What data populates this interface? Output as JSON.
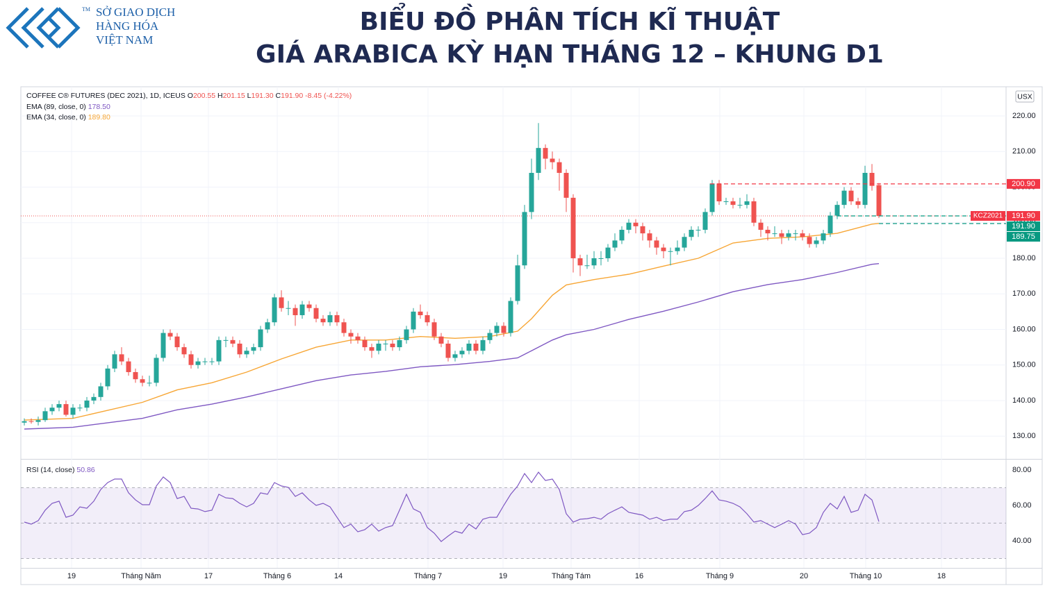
{
  "header": {
    "title_line1": "BIỂU ĐỒ PHÂN TÍCH KĨ THUẬT",
    "title_line2": "GIÁ ARABICA KỲ HẠN THÁNG 12 – KHUNG D1",
    "logo_lines": [
      "SỞ GIAO DỊCH",
      "HÀNG HÓA",
      "VIỆT NAM"
    ],
    "logo_mark": "TM"
  },
  "chart_data": {
    "type": "candlestick",
    "symbol": "COFFEE C® FUTURES (DEC 2021), 1D, ICEUS",
    "ohlc_legend": [
      {
        "key": "O",
        "text": "200.55"
      },
      {
        "key": "H",
        "text": "201.15"
      },
      {
        "key": "L",
        "text": "191.30"
      },
      {
        "key": "C",
        "text": "191.90"
      }
    ],
    "change": "-8.45 (-4.22%)",
    "currency": "USX",
    "up_color": "#26a69a",
    "down_color": "#ef5350",
    "ylim": [
      123.6,
      228.2
    ],
    "yticks": [
      {
        "value": 130,
        "label": "130.00"
      },
      {
        "value": 140,
        "label": "140.00"
      },
      {
        "value": 150,
        "label": "150.00"
      },
      {
        "value": 160,
        "label": "160.00"
      },
      {
        "value": 170,
        "label": "170.00"
      },
      {
        "value": 180,
        "label": "180.00"
      },
      {
        "value": 190,
        "label": "190.00"
      },
      {
        "value": 200,
        "label": "200.00"
      },
      {
        "value": 210,
        "label": "210.00"
      },
      {
        "value": 220,
        "label": "220.00"
      }
    ],
    "xlim": [
      -0.5,
      141.3
    ],
    "xticks": [
      {
        "value": 6.8,
        "label": "19"
      },
      {
        "value": 16.8,
        "label": "Tháng Năm"
      },
      {
        "value": 26.5,
        "label": "17"
      },
      {
        "value": 36.4,
        "label": "Tháng 6"
      },
      {
        "value": 45.2,
        "label": "14"
      },
      {
        "value": 58.1,
        "label": "Tháng 7"
      },
      {
        "value": 68.9,
        "label": "19"
      },
      {
        "value": 78.7,
        "label": "Tháng Tám"
      },
      {
        "value": 88.5,
        "label": "16"
      },
      {
        "value": 100.1,
        "label": "Tháng 9"
      },
      {
        "value": 112.2,
        "label": "20"
      },
      {
        "value": 121.1,
        "label": "Tháng 10"
      },
      {
        "value": 132,
        "label": "18"
      }
    ],
    "grid": true,
    "candles": [
      [
        133.8,
        135,
        133,
        134.2
      ],
      [
        134.2,
        135,
        133.5,
        134
      ],
      [
        134,
        135.5,
        133,
        134.5
      ],
      [
        134.5,
        138,
        134,
        137
      ],
      [
        137,
        139,
        136,
        138
      ],
      [
        138,
        140,
        137,
        139
      ],
      [
        139,
        140,
        135.5,
        136
      ],
      [
        136,
        139,
        135,
        138
      ],
      [
        138,
        139,
        137,
        138
      ],
      [
        138,
        141,
        137,
        140
      ],
      [
        140,
        142,
        139,
        141
      ],
      [
        141,
        145,
        140,
        144
      ],
      [
        144,
        150,
        143,
        149
      ],
      [
        149,
        154,
        148,
        153
      ],
      [
        153,
        155,
        150,
        151
      ],
      [
        151,
        152,
        147,
        148
      ],
      [
        148,
        149,
        145,
        146
      ],
      [
        146,
        147,
        144,
        145
      ],
      [
        145,
        147,
        144,
        145
      ],
      [
        145,
        153,
        144,
        152
      ],
      [
        152,
        160,
        151,
        159
      ],
      [
        159,
        160,
        157,
        158
      ],
      [
        158,
        159,
        154,
        155
      ],
      [
        155,
        156,
        152,
        153
      ],
      [
        153,
        154,
        149,
        150
      ],
      [
        150,
        152,
        149,
        151
      ],
      [
        151,
        152,
        150,
        151
      ],
      [
        151,
        152,
        150,
        151
      ],
      [
        151,
        158,
        150,
        157
      ],
      [
        157,
        158,
        155,
        157
      ],
      [
        157,
        158,
        155,
        156
      ],
      [
        156,
        157,
        152,
        153
      ],
      [
        153,
        155,
        152,
        154
      ],
      [
        154,
        156,
        153,
        155
      ],
      [
        155,
        161,
        154,
        160
      ],
      [
        160,
        163,
        159,
        162
      ],
      [
        162,
        170,
        161,
        169
      ],
      [
        169,
        171,
        165,
        166
      ],
      [
        166,
        168,
        164,
        166
      ],
      [
        166,
        167,
        161,
        164
      ],
      [
        164,
        168,
        163,
        167
      ],
      [
        167,
        168,
        165,
        166
      ],
      [
        166,
        167,
        162,
        163
      ],
      [
        163,
        164,
        161,
        162
      ],
      [
        162,
        165,
        161,
        164
      ],
      [
        164,
        165,
        161,
        162
      ],
      [
        162,
        163,
        158,
        159
      ],
      [
        159,
        160,
        156,
        158
      ],
      [
        158,
        159,
        156,
        157
      ],
      [
        157,
        158,
        154,
        155
      ],
      [
        155,
        156,
        152,
        154
      ],
      [
        154,
        157,
        153,
        156
      ],
      [
        156,
        157,
        154,
        156
      ],
      [
        156,
        157,
        154,
        155
      ],
      [
        155,
        158,
        154,
        157
      ],
      [
        157,
        161,
        156,
        160
      ],
      [
        160,
        166,
        159,
        165
      ],
      [
        165,
        167,
        163,
        164
      ],
      [
        164,
        165,
        161,
        162
      ],
      [
        162,
        163,
        157,
        158
      ],
      [
        158,
        159,
        155,
        156
      ],
      [
        156,
        157,
        151,
        152
      ],
      [
        152,
        154,
        151,
        153
      ],
      [
        153,
        155,
        152,
        154
      ],
      [
        154,
        157,
        153,
        156
      ],
      [
        156,
        157,
        153,
        154
      ],
      [
        154,
        158,
        153,
        157
      ],
      [
        157,
        160,
        156,
        159
      ],
      [
        159,
        162,
        158,
        161
      ],
      [
        161,
        162,
        158,
        159
      ],
      [
        159,
        169,
        158,
        168
      ],
      [
        168,
        181,
        167,
        178
      ],
      [
        178,
        195,
        177,
        193
      ],
      [
        193,
        208,
        191,
        204
      ],
      [
        204,
        218,
        202,
        211
      ],
      [
        211,
        212,
        205,
        208
      ],
      [
        208,
        210,
        205,
        207
      ],
      [
        207,
        208,
        199,
        204
      ],
      [
        204,
        205,
        193,
        197
      ],
      [
        197,
        198,
        176,
        180
      ],
      [
        180,
        181,
        175,
        178
      ],
      [
        178,
        181,
        177,
        178
      ],
      [
        178,
        182,
        177,
        180
      ],
      [
        180,
        182,
        178,
        180
      ],
      [
        180,
        184,
        179,
        183
      ],
      [
        183,
        187,
        182,
        185
      ],
      [
        185,
        189,
        184,
        188
      ],
      [
        188,
        191,
        187,
        190
      ],
      [
        190,
        191,
        187,
        189
      ],
      [
        189,
        190,
        185,
        187
      ],
      [
        187,
        188,
        183,
        185
      ],
      [
        185,
        186,
        181,
        183
      ],
      [
        183,
        184,
        180,
        182
      ],
      [
        182,
        183,
        178,
        182
      ],
      [
        182,
        185,
        181,
        183
      ],
      [
        183,
        187,
        182,
        186
      ],
      [
        186,
        189,
        185,
        188
      ],
      [
        188,
        189,
        186,
        188
      ],
      [
        188,
        194,
        187,
        193
      ],
      [
        193,
        202,
        192,
        201
      ],
      [
        201,
        202,
        195,
        196
      ],
      [
        196,
        197,
        195,
        196
      ],
      [
        196,
        197,
        194,
        195
      ],
      [
        195,
        197,
        194,
        195
      ],
      [
        195,
        198,
        194,
        196
      ],
      [
        196,
        197,
        189,
        190
      ],
      [
        190,
        191,
        186,
        188
      ],
      [
        188,
        189,
        185,
        187
      ],
      [
        187,
        189,
        186,
        187
      ],
      [
        187,
        188,
        184,
        186
      ],
      [
        186,
        188,
        185,
        187
      ],
      [
        187,
        188,
        185,
        187
      ],
      [
        187,
        188,
        185,
        186
      ],
      [
        186,
        187,
        183,
        184
      ],
      [
        184,
        186,
        183,
        185
      ],
      [
        185,
        188,
        184,
        187
      ],
      [
        187,
        193,
        186,
        192
      ],
      [
        192,
        196,
        191,
        195
      ],
      [
        195,
        200,
        194,
        199
      ],
      [
        199,
        200,
        195,
        196
      ],
      [
        196,
        197,
        194,
        195
      ],
      [
        195,
        206,
        194,
        204
      ],
      [
        204,
        206.5,
        199,
        200.35
      ],
      [
        200.55,
        201.15,
        191.3,
        191.9
      ]
    ],
    "series": [
      {
        "name": "EMA (89, close, 0)",
        "last": "178.50",
        "color": "#7e57c2",
        "x": [
          0,
          7,
          17,
          22,
          27,
          32,
          37,
          42,
          47,
          52,
          57,
          62,
          67,
          71,
          73,
          76,
          78,
          82,
          87,
          92,
          97,
          102,
          107,
          112,
          117,
          122,
          123
        ],
        "values": [
          132,
          132.5,
          135,
          137.4,
          139,
          141,
          143.3,
          145.6,
          147.2,
          148.2,
          149.5,
          150.1,
          151,
          152,
          154,
          157,
          158.5,
          160,
          162.8,
          165.1,
          167.7,
          170.6,
          172.6,
          174,
          176,
          178.3,
          178.5
        ]
      },
      {
        "name": "EMA (34, close, 0)",
        "last": "189.80",
        "color": "#f7a635",
        "x": [
          0,
          7,
          17,
          22,
          27,
          32,
          37,
          42,
          47,
          52,
          57,
          62,
          67,
          71,
          73,
          76,
          78,
          82,
          87,
          92,
          97,
          102,
          107,
          112,
          117,
          122,
          123
        ],
        "values": [
          134.5,
          135,
          139.5,
          143,
          145,
          148,
          151.7,
          155,
          157,
          157,
          158,
          157.5,
          158,
          159.5,
          163,
          169.6,
          172.5,
          174,
          175.5,
          177.8,
          180,
          184.3,
          185.6,
          186,
          187,
          189.6,
          189.8
        ]
      }
    ],
    "last_price": 191.9,
    "levels": [
      {
        "value": 200.9,
        "from": 98.7,
        "color": "#f23645"
      },
      {
        "value": 191.9,
        "from": 117,
        "color": "#089981"
      },
      {
        "value": 189.75,
        "from": 123,
        "color": "#089981"
      }
    ],
    "price_tags": [
      {
        "value": 200.9,
        "label": "200.90",
        "color": "#f23645"
      },
      {
        "value": 191.9,
        "label": "191.90",
        "name": "KCZ2021",
        "color": "#f23645"
      },
      {
        "value": 191.9,
        "label": "191.90",
        "color": "#089981"
      },
      {
        "value": 189.75,
        "label": "189.75",
        "color": "#089981"
      }
    ],
    "rsi": {
      "name": "RSI (14, close)",
      "last": "50.86",
      "color": "#7e57c2",
      "ylim": [
        24.7,
        85.9
      ],
      "yticks": [
        {
          "value": 40,
          "label": "40.00"
        },
        {
          "value": 60,
          "label": "60.00"
        },
        {
          "value": 80,
          "label": "80.00"
        }
      ],
      "bands": [
        30,
        50,
        70
      ],
      "values": [
        50.6,
        49.4,
        51.4,
        57.3,
        61.2,
        62.4,
        53.3,
        54.5,
        59.2,
        58.4,
        62.4,
        69,
        72.9,
        74.9,
        74.9,
        67.1,
        63.1,
        60.4,
        60.4,
        71,
        76.1,
        72.9,
        63.9,
        65.1,
        58.4,
        58,
        56.5,
        57.3,
        66.3,
        64.3,
        63.9,
        61.2,
        59.2,
        61.2,
        67.1,
        66.3,
        72.9,
        71,
        70.2,
        65.1,
        67.1,
        63.1,
        60,
        61.2,
        59.2,
        53.3,
        47.5,
        49.4,
        45.1,
        46.3,
        49.4,
        45.5,
        47.5,
        48.6,
        57.3,
        66.3,
        58,
        56.1,
        47.5,
        44.3,
        39.6,
        42.7,
        45.5,
        44.3,
        49.4,
        46.7,
        52.2,
        53.3,
        53.3,
        60,
        66.3,
        71,
        78,
        72.9,
        78.8,
        74.1,
        74.9,
        69,
        55.3,
        50.6,
        52.2,
        52.5,
        53.3,
        52.2,
        55.3,
        57.3,
        59.2,
        56.1,
        55.3,
        54.5,
        52.2,
        53.3,
        51.4,
        52.2,
        52.2,
        56.5,
        57.3,
        60,
        63.9,
        68.2,
        63.1,
        62.4,
        61.2,
        59.2,
        55.3,
        50.6,
        51.4,
        49.4,
        47.5,
        49.4,
        51.4,
        49.4,
        43.5,
        44.3,
        47.5,
        56.1,
        61.2,
        58,
        65.1,
        56.1,
        57.3,
        66.3,
        63.1,
        50.86
      ]
    }
  }
}
